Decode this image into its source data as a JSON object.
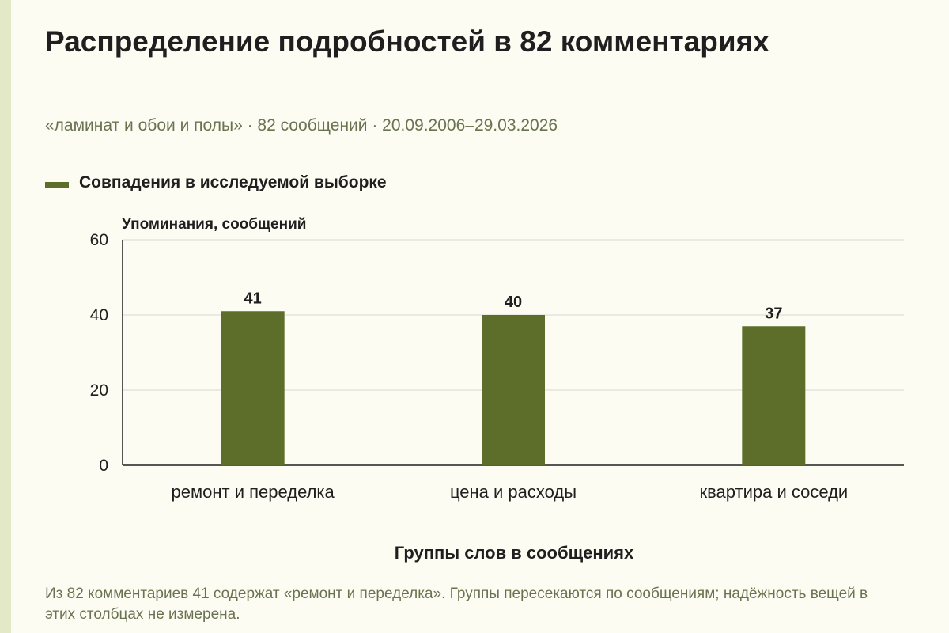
{
  "colors": {
    "background": "#fdfcf3",
    "accent_stripe": "#e3e8c6",
    "bar": "#5c6e2a",
    "muted_text": "#6a7350",
    "grid": "#d8d8d0"
  },
  "note": "Из 82 комментариев 41 содержат «ремонт и переделка». Группы пересекаются по сообщениям; надёжность вещей в этих столбцах не измерена.",
  "chart_data": {
    "type": "bar",
    "title": "Распределение подробностей в 82 комментариях",
    "subtitle": "«ламинат и обои и полы» · 82 сообщений · 20.09.2006–29.03.2026",
    "xlabel": "Группы слов в сообщениях",
    "ylabel": "Упоминания, сообщений",
    "categories": [
      "ремонт и переделка",
      "цена и расходы",
      "квартира и соседи"
    ],
    "series": [
      {
        "name": "Совпадения в исследуемой выборке",
        "values": [
          41,
          40,
          37
        ]
      }
    ],
    "ylim": [
      0,
      60
    ],
    "yticks": [
      0,
      20,
      40,
      60
    ],
    "grid": true,
    "legend": "top-left",
    "data_labels": true
  }
}
